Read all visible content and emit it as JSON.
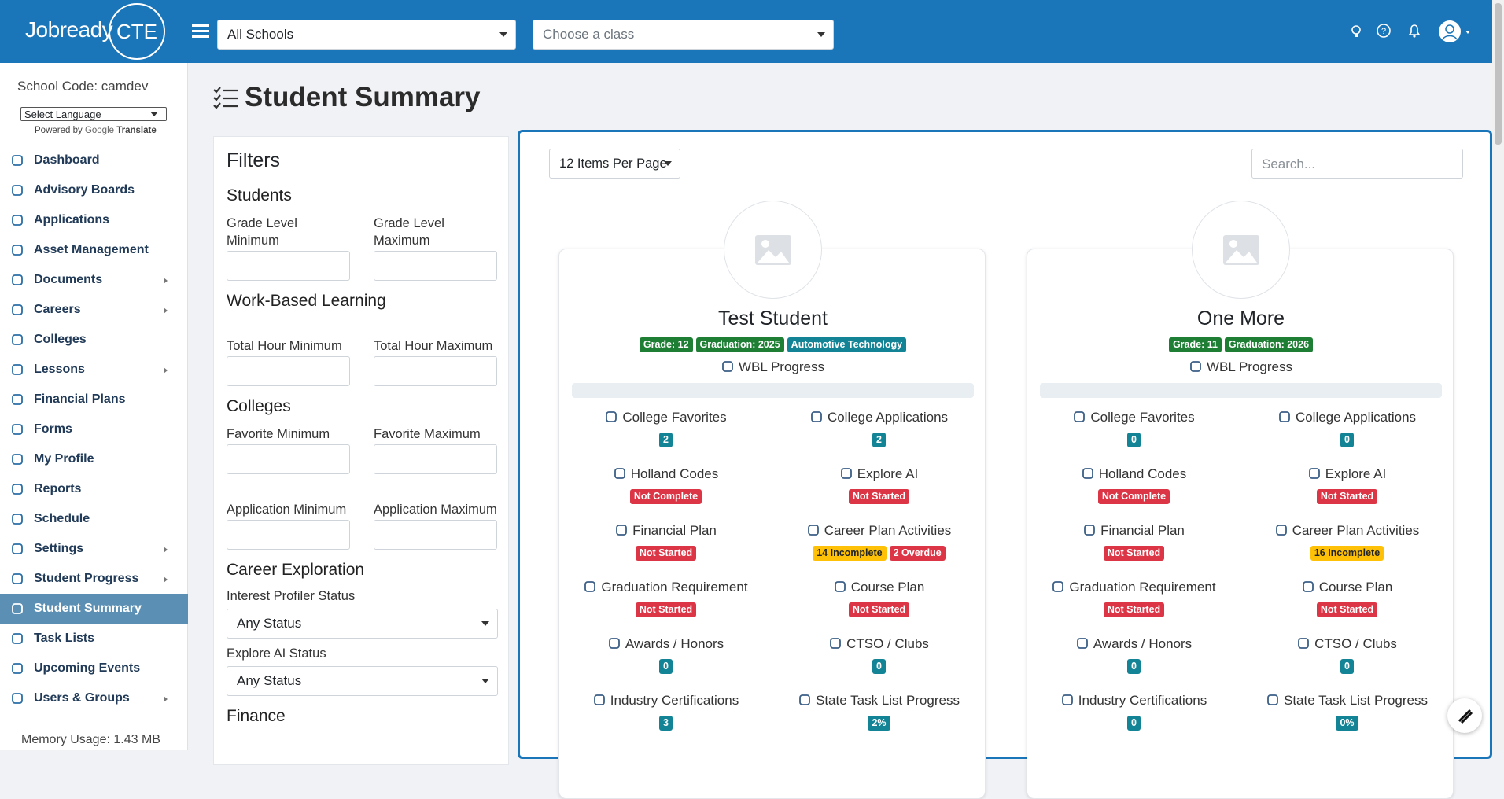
{
  "header": {
    "logo_word": "Jobready",
    "logo_badge": "CTE",
    "school_select": "All Schools",
    "class_select": "Choose a class"
  },
  "sidebar": {
    "school_code": "School Code: camdev",
    "language": "Select Language",
    "powered_by": "Powered by",
    "google": "Google",
    "translate": "Translate",
    "menu": [
      {
        "label": "Dashboard",
        "submenu": false
      },
      {
        "label": "Advisory Boards",
        "submenu": false
      },
      {
        "label": "Applications",
        "submenu": false
      },
      {
        "label": "Asset Management",
        "submenu": false
      },
      {
        "label": "Documents",
        "submenu": true
      },
      {
        "label": "Careers",
        "submenu": true
      },
      {
        "label": "Colleges",
        "submenu": false
      },
      {
        "label": "Lessons",
        "submenu": true
      },
      {
        "label": "Financial Plans",
        "submenu": false
      },
      {
        "label": "Forms",
        "submenu": false
      },
      {
        "label": "My Profile",
        "submenu": false
      },
      {
        "label": "Reports",
        "submenu": false
      },
      {
        "label": "Schedule",
        "submenu": false
      },
      {
        "label": "Settings",
        "submenu": true
      },
      {
        "label": "Student Progress",
        "submenu": true
      },
      {
        "label": "Student Summary",
        "submenu": false,
        "active": true
      },
      {
        "label": "Task Lists",
        "submenu": false
      },
      {
        "label": "Upcoming Events",
        "submenu": false
      },
      {
        "label": "Users & Groups",
        "submenu": true
      }
    ],
    "memory": "Memory Usage: 1.43 MB"
  },
  "page": {
    "title": "Student Summary"
  },
  "filters": {
    "title": "Filters",
    "sections": [
      {
        "heading": "Students",
        "fields": [
          {
            "label": "Grade Level Minimum"
          },
          {
            "label": "Grade Level Maximum"
          }
        ]
      },
      {
        "heading": "Work-Based Learning",
        "fields": [
          {
            "label": "Total Hour Minimum"
          },
          {
            "label": "Total Hour Maximum"
          }
        ]
      },
      {
        "heading": "Colleges",
        "fields": [
          {
            "label": "Favorite Minimum"
          },
          {
            "label": "Favorite Maximum"
          },
          {
            "label": "Application Minimum"
          },
          {
            "label": "Application Maximum"
          }
        ]
      },
      {
        "heading": "Career Exploration",
        "selects": [
          {
            "label": "Interest Profiler Status",
            "value": "Any Status"
          },
          {
            "label": "Explore AI Status",
            "value": "Any Status"
          }
        ]
      },
      {
        "heading": "Finance"
      }
    ]
  },
  "toolbar": {
    "per_page": "12 Items Per Page",
    "search": "Search..."
  },
  "students": [
    {
      "name": "Test Student",
      "badges": [
        {
          "text": "Grade: 12",
          "tone": "green"
        },
        {
          "text": "Graduation: 2025",
          "tone": "green"
        },
        {
          "text": "Automotive Technology",
          "tone": "teal"
        }
      ],
      "wbl": "WBL Progress",
      "metrics": [
        {
          "label": "College Favorites",
          "badges": [
            {
              "text": "2",
              "tone": "teal"
            }
          ]
        },
        {
          "label": "College Applications",
          "badges": [
            {
              "text": "2",
              "tone": "teal"
            }
          ]
        },
        {
          "label": "Holland Codes",
          "badges": [
            {
              "text": "Not Complete",
              "tone": "red"
            }
          ]
        },
        {
          "label": "Explore AI",
          "badges": [
            {
              "text": "Not Started",
              "tone": "red"
            }
          ]
        },
        {
          "label": "Financial Plan",
          "badges": [
            {
              "text": "Not Started",
              "tone": "red"
            }
          ]
        },
        {
          "label": "Career Plan Activities",
          "badges": [
            {
              "text": "14 Incomplete",
              "tone": "yellow"
            },
            {
              "text": "2 Overdue",
              "tone": "red"
            }
          ]
        },
        {
          "label": "Graduation Requirement",
          "badges": [
            {
              "text": "Not Started",
              "tone": "red"
            }
          ]
        },
        {
          "label": "Course Plan",
          "badges": [
            {
              "text": "Not Started",
              "tone": "red"
            }
          ]
        },
        {
          "label": "Awards / Honors",
          "badges": [
            {
              "text": "0",
              "tone": "teal"
            }
          ]
        },
        {
          "label": "CTSO / Clubs",
          "badges": [
            {
              "text": "0",
              "tone": "teal"
            }
          ]
        },
        {
          "label": "Industry Certifications",
          "badges": [
            {
              "text": "3",
              "tone": "teal"
            }
          ]
        },
        {
          "label": "State Task List Progress",
          "badges": [
            {
              "text": "2%",
              "tone": "teal"
            }
          ]
        }
      ]
    },
    {
      "name": "One More",
      "badges": [
        {
          "text": "Grade: 11",
          "tone": "green"
        },
        {
          "text": "Graduation: 2026",
          "tone": "green"
        }
      ],
      "wbl": "WBL Progress",
      "metrics": [
        {
          "label": "College Favorites",
          "badges": [
            {
              "text": "0",
              "tone": "teal"
            }
          ]
        },
        {
          "label": "College Applications",
          "badges": [
            {
              "text": "0",
              "tone": "teal"
            }
          ]
        },
        {
          "label": "Holland Codes",
          "badges": [
            {
              "text": "Not Complete",
              "tone": "red"
            }
          ]
        },
        {
          "label": "Explore AI",
          "badges": [
            {
              "text": "Not Started",
              "tone": "red"
            }
          ]
        },
        {
          "label": "Financial Plan",
          "badges": [
            {
              "text": "Not Started",
              "tone": "red"
            }
          ]
        },
        {
          "label": "Career Plan Activities",
          "badges": [
            {
              "text": "16 Incomplete",
              "tone": "yellow"
            }
          ]
        },
        {
          "label": "Graduation Requirement",
          "badges": [
            {
              "text": "Not Started",
              "tone": "red"
            }
          ]
        },
        {
          "label": "Course Plan",
          "badges": [
            {
              "text": "Not Started",
              "tone": "red"
            }
          ]
        },
        {
          "label": "Awards / Honors",
          "badges": [
            {
              "text": "0",
              "tone": "teal"
            }
          ]
        },
        {
          "label": "CTSO / Clubs",
          "badges": [
            {
              "text": "0",
              "tone": "teal"
            }
          ]
        },
        {
          "label": "Industry Certifications",
          "badges": [
            {
              "text": "0",
              "tone": "teal"
            }
          ]
        },
        {
          "label": "State Task List Progress",
          "badges": [
            {
              "text": "0%",
              "tone": "teal"
            }
          ]
        }
      ]
    }
  ]
}
